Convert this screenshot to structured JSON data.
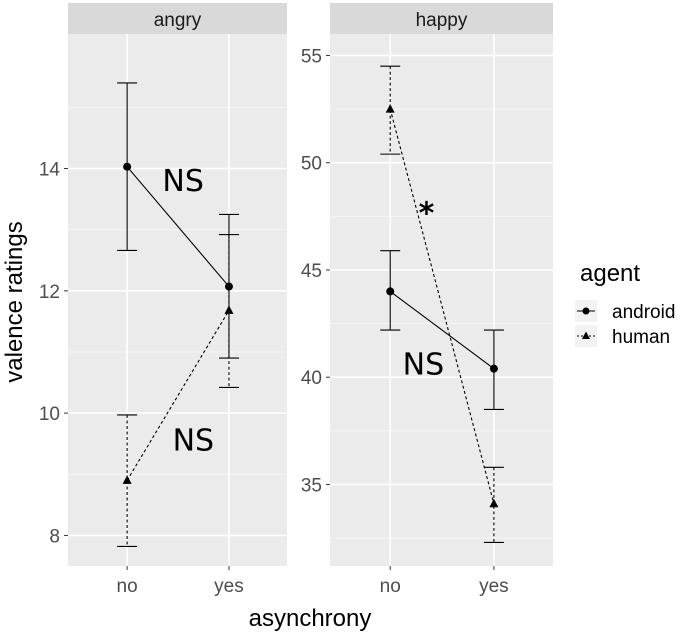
{
  "chart_data": {
    "type": "line",
    "subtype": "faceted interaction plot with error bars",
    "xlabel": "asynchrony",
    "ylabel": "valence ratings",
    "categories": [
      "no",
      "yes"
    ],
    "legend": {
      "title": "agent",
      "placement": "right",
      "entries": [
        {
          "name": "android",
          "marker": "circle",
          "line": "solid"
        },
        {
          "name": "human",
          "marker": "triangle",
          "line": "dotted"
        }
      ]
    },
    "panels": [
      {
        "title": "angry",
        "ylim": [
          7.5,
          16.2
        ],
        "yticks": [
          8,
          10,
          12,
          14
        ],
        "series": [
          {
            "name": "android",
            "values": [
              14.03,
              12.07
            ],
            "err_low": [
              12.66,
              10.9
            ],
            "err_high": [
              15.4,
              13.25
            ]
          },
          {
            "name": "human",
            "values": [
              8.9,
              11.68
            ],
            "err_low": [
              7.82,
              10.42
            ],
            "err_high": [
              9.97,
              12.92
            ]
          }
        ],
        "annotations": [
          {
            "text": "NS",
            "x": 1.55,
            "y": 13.8
          },
          {
            "text": "NS",
            "x": 1.65,
            "y": 9.55
          }
        ]
      },
      {
        "title": "happy",
        "ylim": [
          31.2,
          56.0
        ],
        "yticks": [
          35,
          40,
          45,
          50,
          55
        ],
        "series": [
          {
            "name": "android",
            "values": [
              44.0,
              40.4
            ],
            "err_low": [
              42.2,
              38.5
            ],
            "err_high": [
              45.9,
              42.2
            ]
          },
          {
            "name": "human",
            "values": [
              52.5,
              34.1
            ],
            "err_low": [
              50.4,
              32.3
            ],
            "err_high": [
              54.5,
              35.8
            ]
          }
        ],
        "annotations": [
          {
            "text": "*",
            "x": 1.35,
            "y": 48.0
          },
          {
            "text": "NS",
            "x": 1.32,
            "y": 40.6
          }
        ]
      }
    ],
    "colors": {
      "panel_bg": "#ebebeb",
      "grid_major": "#ffffff",
      "strip_bg": "#d9d9d9",
      "ink": "#000000",
      "tick": "#4d4d4d"
    }
  }
}
